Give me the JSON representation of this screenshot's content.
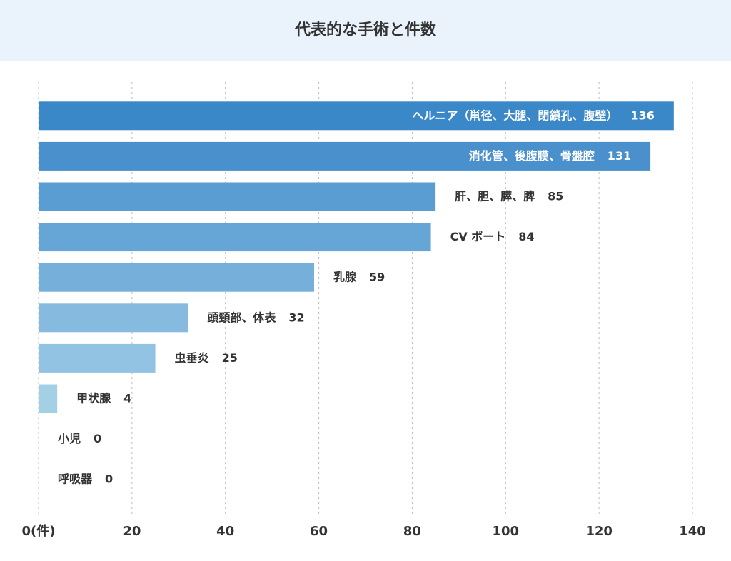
{
  "chart_data": {
    "type": "hbar",
    "title": "代表的な手術と件数",
    "categories": [
      "ヘルニア（鼡径、大腿、閉鎖孔、腹壁）",
      "消化管、後腹膜、骨盤腔",
      "肝、胆、膵、脾",
      "CV ポート",
      "乳腺",
      "頭頸部、体表",
      "虫垂炎",
      "甲状腺",
      "小児",
      "呼吸器"
    ],
    "values": [
      136,
      131,
      85,
      84,
      59,
      32,
      25,
      4,
      0,
      0
    ],
    "colors": [
      "#3b88c9",
      "#4990cd",
      "#5a9dd2",
      "#66a6d6",
      "#76b0da",
      "#86bbdf",
      "#93c3e2",
      "#a4d0e6",
      "#b0d6ea",
      "#bcdcee"
    ],
    "xlim": [
      0,
      140
    ],
    "xticks": [
      {
        "value": 0,
        "label": "0(件)"
      },
      20,
      40,
      60,
      80,
      100,
      120,
      140
    ],
    "grid": true
  }
}
